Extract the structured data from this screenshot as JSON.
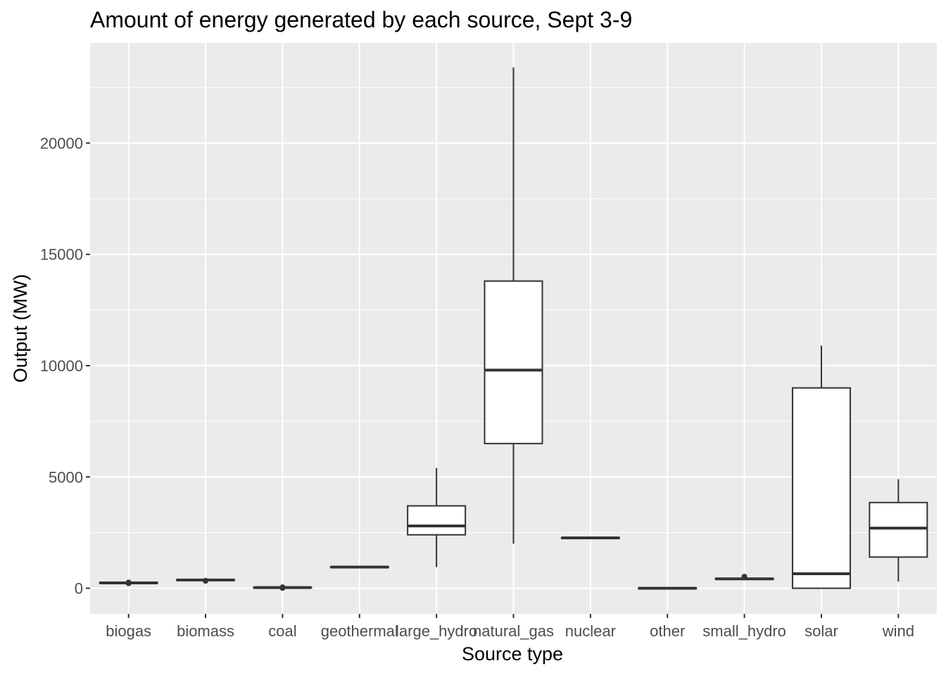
{
  "chart_data": {
    "type": "box",
    "title": "Amount of energy generated by each source, Sept 3-9",
    "xlabel": "Source type",
    "ylabel": "Output (MW)",
    "ylim": [
      -1150,
      24500
    ],
    "yticks": [
      0,
      5000,
      10000,
      15000,
      20000
    ],
    "grid": true,
    "categories": [
      "biogas",
      "biomass",
      "coal",
      "geothermal",
      "large_hydro",
      "natural_gas",
      "nuclear",
      "other",
      "small_hydro",
      "solar",
      "wind"
    ],
    "boxes": [
      {
        "category": "biogas",
        "min": 220,
        "q1": 225,
        "median": 240,
        "q3": 255,
        "max": 265,
        "outliers": [
          220,
          250,
          260
        ]
      },
      {
        "category": "biomass",
        "min": 340,
        "q1": 355,
        "median": 370,
        "q3": 385,
        "max": 395,
        "outliers": [
          330,
          340
        ]
      },
      {
        "category": "coal",
        "min": 20,
        "q1": 25,
        "median": 30,
        "q3": 35,
        "max": 40,
        "outliers": [
          10,
          20,
          30,
          45
        ]
      },
      {
        "category": "geothermal",
        "min": 930,
        "q1": 935,
        "median": 950,
        "q3": 965,
        "max": 975,
        "outliers": []
      },
      {
        "category": "large_hydro",
        "min": 950,
        "q1": 2400,
        "median": 2800,
        "q3": 3700,
        "max": 5400,
        "outliers": []
      },
      {
        "category": "natural_gas",
        "min": 2000,
        "q1": 6500,
        "median": 9800,
        "q3": 13800,
        "max": 23400,
        "outliers": []
      },
      {
        "category": "nuclear",
        "min": 2230,
        "q1": 2240,
        "median": 2260,
        "q3": 2275,
        "max": 2290,
        "outliers": []
      },
      {
        "category": "other",
        "min": -30,
        "q1": -20,
        "median": 0,
        "q3": 15,
        "max": 25,
        "outliers": []
      },
      {
        "category": "small_hydro",
        "min": 400,
        "q1": 405,
        "median": 420,
        "q3": 440,
        "max": 455,
        "outliers": [
          480,
          520
        ]
      },
      {
        "category": "solar",
        "min": 0,
        "q1": 0,
        "median": 650,
        "q3": 9000,
        "max": 10900,
        "outliers": []
      },
      {
        "category": "wind",
        "min": 300,
        "q1": 1400,
        "median": 2700,
        "q3": 3850,
        "max": 4900,
        "outliers": []
      }
    ],
    "colors": {
      "panel": "#ebebeb",
      "grid": "#ffffff",
      "box_fill": "#ffffff",
      "box_stroke": "#333333",
      "tick_text": "#4d4d4d"
    }
  }
}
